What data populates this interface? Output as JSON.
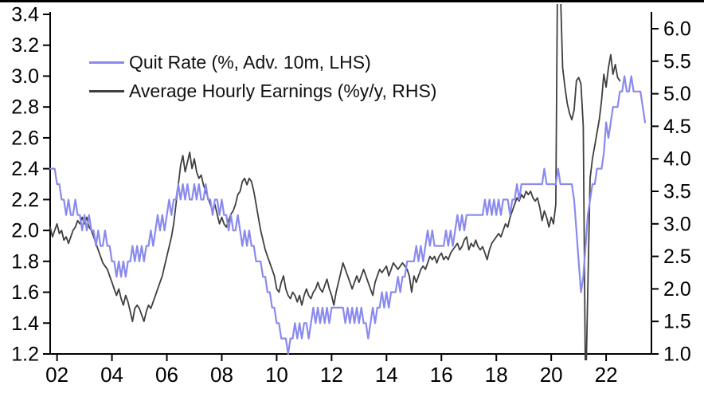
{
  "chart_data": {
    "type": "line",
    "title": "",
    "legend_position": "top-left-inside",
    "grid": false,
    "x_axis": {
      "range": [
        2001.75,
        2023.65
      ],
      "ticks": [
        2002,
        2004,
        2006,
        2008,
        2010,
        2012,
        2014,
        2016,
        2018,
        2020,
        2022
      ],
      "tick_labels": [
        "02",
        "04",
        "06",
        "08",
        "10",
        "12",
        "14",
        "16",
        "18",
        "20",
        "22"
      ]
    },
    "left_axis": {
      "range": [
        1.2,
        3.4
      ],
      "ticks": [
        1.2,
        1.4,
        1.6,
        1.8,
        2.0,
        2.2,
        2.4,
        2.6,
        2.8,
        3.0,
        3.2,
        3.4
      ],
      "tick_labels": [
        "1.2",
        "1.4",
        "1.6",
        "1.8",
        "2.0",
        "2.2",
        "2.4",
        "2.6",
        "2.8",
        "3.0",
        "3.2",
        "3.4"
      ]
    },
    "right_axis": {
      "range": [
        1.0,
        6.0
      ],
      "ticks": [
        1.0,
        1.5,
        2.0,
        2.5,
        3.0,
        3.5,
        4.0,
        4.5,
        5.0,
        5.5,
        6.0
      ],
      "tick_labels": [
        "1.0",
        "1.5",
        "2.0",
        "2.5",
        "3.0",
        "3.5",
        "4.0",
        "4.5",
        "5.0",
        "5.5",
        "6.0"
      ]
    },
    "series": [
      {
        "name": "Quit Rate (%, Adv. 10m, LHS)",
        "axis": "left",
        "color": "#8a8aee",
        "stroke_width": 2.2,
        "x_start": 2001.75,
        "x_step_per_year": 12,
        "values": [
          2.4,
          2.4,
          2.4,
          2.3,
          2.3,
          2.2,
          2.2,
          2.1,
          2.2,
          2.1,
          2.1,
          2.2,
          2.1,
          2.1,
          2.0,
          2.1,
          2.0,
          2.1,
          2.0,
          2.0,
          1.9,
          2.0,
          1.9,
          1.9,
          2.0,
          1.9,
          1.9,
          1.8,
          1.8,
          1.7,
          1.8,
          1.7,
          1.8,
          1.7,
          1.8,
          1.8,
          1.9,
          1.8,
          1.9,
          1.8,
          1.9,
          1.8,
          1.9,
          1.9,
          2.0,
          1.9,
          2.0,
          2.1,
          2.0,
          2.1,
          2.0,
          2.1,
          2.2,
          2.1,
          2.2,
          2.2,
          2.3,
          2.2,
          2.3,
          2.2,
          2.3,
          2.2,
          2.2,
          2.3,
          2.2,
          2.3,
          2.2,
          2.2,
          2.3,
          2.2,
          2.2,
          2.1,
          2.2,
          2.2,
          2.1,
          2.2,
          2.1,
          2.1,
          2.0,
          2.1,
          2.0,
          2.0,
          2.1,
          2.0,
          1.9,
          2.0,
          1.9,
          2.0,
          1.9,
          1.9,
          1.8,
          1.8,
          1.8,
          1.7,
          1.7,
          1.6,
          1.6,
          1.5,
          1.5,
          1.4,
          1.4,
          1.3,
          1.3,
          1.3,
          1.2,
          1.3,
          1.3,
          1.4,
          1.3,
          1.4,
          1.3,
          1.4,
          1.4,
          1.3,
          1.4,
          1.5,
          1.4,
          1.5,
          1.4,
          1.5,
          1.4,
          1.5,
          1.4,
          1.5,
          1.5,
          1.5,
          1.5,
          1.5,
          1.5,
          1.4,
          1.5,
          1.4,
          1.5,
          1.4,
          1.5,
          1.4,
          1.5,
          1.4,
          1.4,
          1.3,
          1.4,
          1.5,
          1.4,
          1.5,
          1.5,
          1.6,
          1.5,
          1.6,
          1.5,
          1.6,
          1.6,
          1.6,
          1.7,
          1.6,
          1.7,
          1.7,
          1.8,
          1.8,
          1.8,
          1.8,
          1.9,
          1.8,
          1.9,
          1.8,
          1.9,
          2.0,
          1.9,
          2.0,
          1.9,
          1.9,
          1.9,
          1.9,
          1.9,
          2.0,
          1.9,
          2.0,
          1.9,
          2.0,
          2.1,
          2.0,
          2.1,
          2.0,
          2.1,
          2.1,
          2.1,
          2.1,
          2.1,
          2.1,
          2.1,
          2.1,
          2.2,
          2.1,
          2.2,
          2.1,
          2.2,
          2.1,
          2.2,
          2.1,
          2.2,
          2.2,
          2.2,
          2.1,
          2.2,
          2.2,
          2.3,
          2.2,
          2.3,
          2.3,
          2.3,
          2.3,
          2.3,
          2.3,
          2.3,
          2.3,
          2.3,
          2.3,
          2.4,
          2.3,
          2.3,
          2.3,
          2.3,
          2.3,
          2.4,
          2.3,
          2.3,
          2.3,
          2.3,
          2.3,
          2.3,
          2.2,
          2.0,
          1.8,
          1.6,
          1.7,
          1.9,
          2.1,
          2.2,
          2.3,
          2.3,
          2.4,
          2.4,
          2.4,
          2.5,
          2.7,
          2.6,
          2.7,
          2.8,
          2.8,
          2.8,
          2.9,
          2.9,
          3.0,
          2.9,
          2.9,
          3.0,
          2.9,
          2.9,
          2.9,
          2.9,
          2.8,
          2.7
        ]
      },
      {
        "name": "Average Hourly Earnings (%y/y, RHS)",
        "axis": "right",
        "color": "#3f3f3f",
        "stroke_width": 1.8,
        "x_start": 2001.75,
        "x_step_per_year": 12,
        "values": [
          2.95,
          2.8,
          2.9,
          3.0,
          2.85,
          2.9,
          2.75,
          2.8,
          2.7,
          2.8,
          2.9,
          2.95,
          3.05,
          3.0,
          3.1,
          3.0,
          3.1,
          2.95,
          2.9,
          2.8,
          2.7,
          2.6,
          2.5,
          2.4,
          2.35,
          2.3,
          2.2,
          2.1,
          2.0,
          1.9,
          2.0,
          1.85,
          1.75,
          1.9,
          1.8,
          1.65,
          1.5,
          1.7,
          1.75,
          1.7,
          1.6,
          1.5,
          1.65,
          1.75,
          1.7,
          1.8,
          1.9,
          2.0,
          2.1,
          2.2,
          2.35,
          2.5,
          2.65,
          2.8,
          3.0,
          3.3,
          3.6,
          3.9,
          4.05,
          3.8,
          3.95,
          4.1,
          3.85,
          4.0,
          3.8,
          3.7,
          3.75,
          3.6,
          3.5,
          3.4,
          3.3,
          3.2,
          3.3,
          3.15,
          3.0,
          3.1,
          3.0,
          2.95,
          3.05,
          3.15,
          3.2,
          3.3,
          3.45,
          3.5,
          3.65,
          3.7,
          3.6,
          3.7,
          3.65,
          3.5,
          3.3,
          3.1,
          2.9,
          2.75,
          2.6,
          2.5,
          2.4,
          2.3,
          2.2,
          2.0,
          1.95,
          2.1,
          2.2,
          2.0,
          1.9,
          1.85,
          1.95,
          1.9,
          1.8,
          1.9,
          1.75,
          1.9,
          2.0,
          1.9,
          1.85,
          1.95,
          2.0,
          2.1,
          2.0,
          1.95,
          2.05,
          2.15,
          2.0,
          1.9,
          1.75,
          1.95,
          2.1,
          2.25,
          2.4,
          2.3,
          2.2,
          2.1,
          2.0,
          2.1,
          2.2,
          2.1,
          2.2,
          2.3,
          2.2,
          2.1,
          2.0,
          1.9,
          2.1,
          2.2,
          2.3,
          2.25,
          2.3,
          2.35,
          2.2,
          2.3,
          2.4,
          2.35,
          2.3,
          2.35,
          2.4,
          2.35,
          2.3,
          2.2,
          1.95,
          2.2,
          2.1,
          2.2,
          2.3,
          2.35,
          2.3,
          2.4,
          2.5,
          2.45,
          2.5,
          2.4,
          2.5,
          2.55,
          2.45,
          2.5,
          2.45,
          2.55,
          2.6,
          2.65,
          2.7,
          2.6,
          2.65,
          2.75,
          2.8,
          2.6,
          2.7,
          2.65,
          2.75,
          2.65,
          2.6,
          2.65,
          2.55,
          2.45,
          2.6,
          2.7,
          2.75,
          2.8,
          2.85,
          2.8,
          2.9,
          3.0,
          2.95,
          3.1,
          3.2,
          3.3,
          3.4,
          3.35,
          3.45,
          3.4,
          3.5,
          3.45,
          3.5,
          3.4,
          3.35,
          3.4,
          3.25,
          3.05,
          3.2,
          3.1,
          2.95,
          3.1,
          3.0,
          3.3,
          8.0,
          6.6,
          5.4,
          5.1,
          4.85,
          4.7,
          4.6,
          4.75,
          5.2,
          5.25,
          5.15,
          4.5,
          0.3,
          2.0,
          3.7,
          4.0,
          4.2,
          4.4,
          4.6,
          4.9,
          5.3,
          5.1,
          5.4,
          5.6,
          5.3,
          5.45,
          5.25,
          5.2
        ]
      }
    ]
  },
  "legend": {
    "items": [
      {
        "label": "Quit Rate (%, Adv. 10m, LHS)",
        "color": "#8a8aee"
      },
      {
        "label": "Average Hourly Earnings (%y/y, RHS)",
        "color": "#3f3f3f"
      }
    ]
  },
  "style": {
    "axis_color": "#000000",
    "tick_label_color": "#000000",
    "background": "#ffffff"
  }
}
